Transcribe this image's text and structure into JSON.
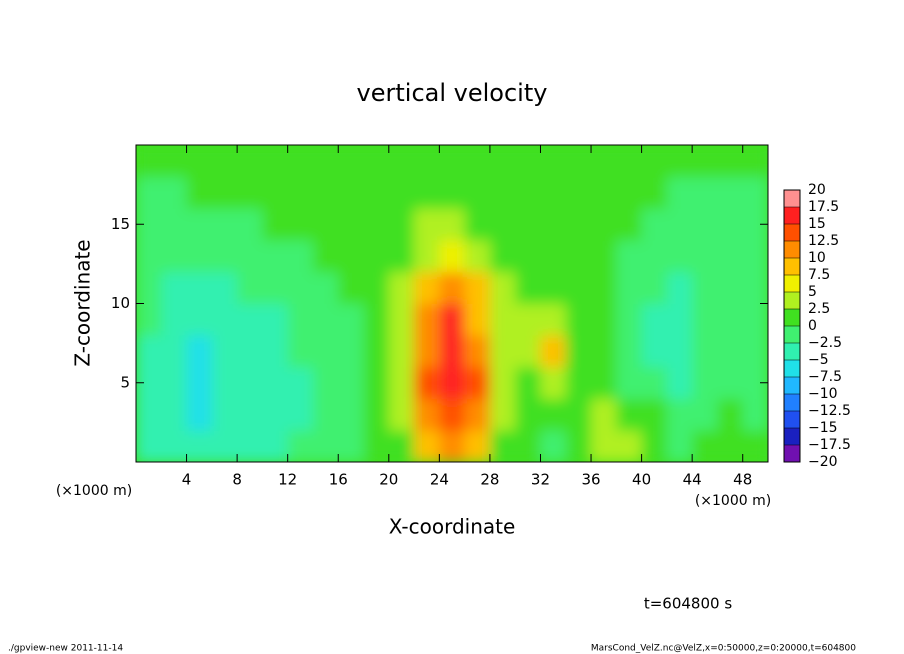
{
  "chart_data": {
    "type": "heatmap",
    "title": "vertical velocity",
    "x_label": "X-coordinate",
    "y_label": "Z-coordinate",
    "x_unit_label": "(×1000 m)",
    "x_unit_label_right": "(×1000 m)",
    "time_label": "t=604800 s",
    "footer_left": "./gpview-new  2011-11-14",
    "footer_right": "MarsCond_VelZ.nc@VelZ,x=0:50000,z=0:20000,t=604800",
    "xlim": [
      0,
      50
    ],
    "ylim": [
      0,
      20
    ],
    "xticks": [
      4,
      8,
      12,
      16,
      20,
      24,
      28,
      32,
      36,
      40,
      44,
      48
    ],
    "yticks": [
      5,
      10,
      15
    ],
    "x": [
      1,
      3,
      5,
      7,
      9,
      11,
      13,
      15,
      17,
      19,
      21,
      23,
      25,
      27,
      29,
      31,
      33,
      35,
      37,
      39,
      41,
      43,
      45,
      47,
      49
    ],
    "y": [
      1,
      3,
      5,
      7,
      9,
      11,
      13,
      15,
      17,
      19
    ],
    "values": [
      [
        -3,
        -4,
        -5,
        -4,
        -3,
        -3,
        -2,
        -2,
        -1,
        0,
        2,
        8,
        12,
        8,
        2,
        0,
        -1,
        0,
        4,
        3,
        0,
        -1,
        0,
        2,
        0
      ],
      [
        -3,
        -5,
        -7,
        -5,
        -4,
        -3,
        -3,
        -2,
        -1,
        0,
        3,
        12,
        14,
        12,
        3,
        1,
        0,
        1,
        3,
        2,
        0,
        -2,
        -1,
        0,
        -1
      ],
      [
        -3,
        -4,
        -7,
        -5,
        -4,
        -3,
        -3,
        -2,
        -1,
        0,
        4,
        13,
        15,
        13,
        3,
        2,
        3,
        1,
        0,
        -1,
        -2,
        -3,
        -2,
        -1,
        -2
      ],
      [
        -3,
        -4,
        -7,
        -4,
        -3,
        -3,
        -2,
        -2,
        -1,
        0,
        4,
        12,
        15,
        10,
        4,
        4,
        8,
        2,
        0,
        -1,
        -3,
        -3,
        -2,
        -2,
        -2
      ],
      [
        -2,
        -3,
        -4,
        -3,
        -3,
        -3,
        -2,
        -2,
        -1,
        1,
        4,
        11,
        15,
        9,
        4,
        3,
        4,
        1,
        0,
        -1,
        -3,
        -3,
        -2,
        -2,
        -2
      ],
      [
        -2,
        -3,
        -3,
        -3,
        -2,
        -2,
        -2,
        -1,
        0,
        1,
        3,
        9,
        11,
        8,
        3,
        2,
        1,
        1,
        0,
        -1,
        -2,
        -3,
        -2,
        -2,
        -2
      ],
      [
        -2,
        -2,
        -2,
        -2,
        -2,
        -1,
        -1,
        0,
        0,
        1,
        2,
        4,
        6,
        4,
        2,
        1,
        1,
        0,
        0,
        -1,
        -2,
        -2,
        -2,
        -2,
        -2
      ],
      [
        -1,
        -1,
        -1,
        -1,
        -1,
        0,
        0,
        0,
        1,
        1,
        2,
        3,
        3,
        2,
        2,
        1,
        1,
        0,
        0,
        0,
        -1,
        -1,
        -1,
        -1,
        -1
      ],
      [
        -1,
        -1,
        0,
        0,
        0,
        0,
        1,
        1,
        1,
        1,
        1,
        2,
        2,
        2,
        1,
        1,
        1,
        0,
        0,
        0,
        0,
        -1,
        -1,
        -1,
        -1
      ],
      [
        0,
        0,
        0,
        0,
        1,
        1,
        1,
        1,
        1,
        1,
        1,
        1,
        1,
        1,
        1,
        1,
        1,
        0,
        0,
        0,
        0,
        0,
        0,
        0,
        0
      ]
    ],
    "colorbar": {
      "levels": [
        20,
        17.5,
        15,
        12.5,
        10,
        7.5,
        5,
        2.5,
        0,
        {
          "value": -2.5,
          "label": "−2.5"
        },
        {
          "value": -5,
          "label": "−5"
        },
        {
          "value": -7.5,
          "label": "−7.5"
        },
        {
          "value": -10,
          "label": "−10"
        },
        {
          "value": -12.5,
          "label": "−12.5"
        },
        {
          "value": -15,
          "label": "−15"
        },
        {
          "value": -17.5,
          "label": "−17.5"
        },
        {
          "value": -20,
          "label": "−20"
        }
      ],
      "colors": [
        "#ff9090",
        "#ff2020",
        "#ff5000",
        "#ff8c00",
        "#ffc000",
        "#f0f000",
        "#b0f020",
        "#40e020",
        "#40f070",
        "#30f0b0",
        "#20e0e8",
        "#20b8ff",
        "#2080ff",
        "#2050f0",
        "#1a20c0",
        "#7010b0"
      ]
    }
  }
}
